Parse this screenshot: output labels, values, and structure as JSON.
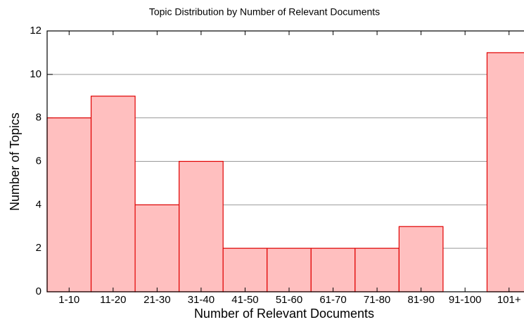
{
  "chart_data": {
    "type": "bar",
    "title": "Topic Distribution by Number of Relevant Documents",
    "x_label": "Number of Relevant Documents",
    "y_label": "Number of Topics",
    "categories": [
      "1-10",
      "11-20",
      "21-30",
      "31-40",
      "41-50",
      "51-60",
      "61-70",
      "71-80",
      "81-90",
      "91-100",
      "101+"
    ],
    "values": [
      8,
      9,
      4,
      6,
      2,
      2,
      2,
      2,
      3,
      0,
      11
    ],
    "color": "#ffbfbf",
    "edge_color": "#e00000",
    "ylim": [
      0,
      12
    ],
    "yticks": [
      0,
      2,
      4,
      6,
      8,
      10,
      12
    ],
    "grid": true
  }
}
